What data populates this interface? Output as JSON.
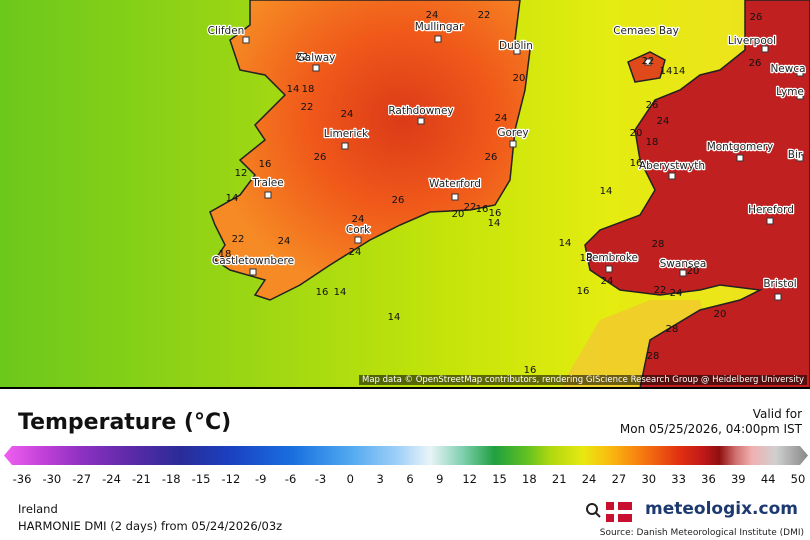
{
  "map": {
    "cities": [
      "Clifden",
      "Mullingar",
      "Dublin",
      "Cemaes Bay",
      "Liverpool",
      "Newca",
      "Lyme",
      "Galway",
      "Rathdowney",
      "Limerick",
      "Gorey",
      "Montgomery",
      "Bir",
      "Aberystwyth",
      "Tralee",
      "Waterford",
      "Hereford",
      "Cork",
      "Pembroke",
      "Swansea",
      "Castletownbere",
      "Bristol"
    ],
    "temperature_labels": [
      24,
      22,
      22,
      14,
      18,
      22,
      24,
      24,
      26,
      16,
      12,
      14,
      26,
      20,
      22,
      16,
      16,
      14,
      24,
      24,
      24,
      22,
      18,
      16,
      14,
      14,
      20,
      26,
      14,
      14,
      16,
      16,
      22,
      14,
      14,
      20,
      18,
      16,
      24,
      26,
      18,
      24,
      22,
      20,
      28,
      26,
      26,
      28,
      28,
      24,
      20
    ],
    "attribution": "Map data © OpenStreetMap contributors, rendering GIScience Research Group @ Heidelberg University"
  },
  "legend": {
    "title": "Temperature (°C)",
    "valid_label": "Valid for",
    "valid_time": "Mon 05/25/2026, 04:00pm IST",
    "ticks": [
      -36,
      -30,
      -27,
      -24,
      -21,
      -18,
      -15,
      -12,
      -9,
      -6,
      -3,
      0,
      3,
      6,
      9,
      12,
      15,
      18,
      21,
      24,
      27,
      30,
      33,
      36,
      39,
      44,
      50
    ]
  },
  "footer": {
    "region": "Ireland",
    "model": "HARMONIE DMI (2 days) from 05/24/2026/03z",
    "brand": "meteologix.com",
    "source": "Source: Danish Meteorological Institute (DMI)"
  }
}
